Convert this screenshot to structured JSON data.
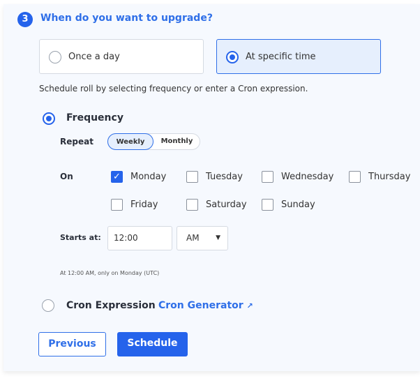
{
  "step": {
    "number": "3",
    "title": "When do you want to upgrade?"
  },
  "options": [
    {
      "label": "Once a day",
      "selected": false
    },
    {
      "label": "At specific time",
      "selected": true
    }
  ],
  "help_text": "Schedule roll by selecting frequency or enter a Cron expression.",
  "frequency": {
    "label": "Frequency",
    "selected": true,
    "repeat_label": "Repeat",
    "repeat_options": [
      "Weekly",
      "Monthly"
    ],
    "repeat_selected": "Weekly",
    "on_label": "On",
    "days": [
      {
        "label": "Monday",
        "checked": true
      },
      {
        "label": "Tuesday",
        "checked": false
      },
      {
        "label": "Wednesday",
        "checked": false
      },
      {
        "label": "Thursday",
        "checked": false
      },
      {
        "label": "Friday",
        "checked": false
      },
      {
        "label": "Saturday",
        "checked": false
      },
      {
        "label": "Sunday",
        "checked": false
      }
    ],
    "starts_label": "Starts at:",
    "time_value": "12:00",
    "ampm_value": "AM",
    "summary": "At 12:00 AM, only on Monday (UTC)"
  },
  "cron": {
    "label": "Cron Expression",
    "selected": false,
    "link": "Cron Generator"
  },
  "buttons": {
    "previous": "Previous",
    "schedule": "Schedule"
  },
  "colors": {
    "accent": "#2563eb",
    "panel_bg": "#f6f9fe"
  }
}
